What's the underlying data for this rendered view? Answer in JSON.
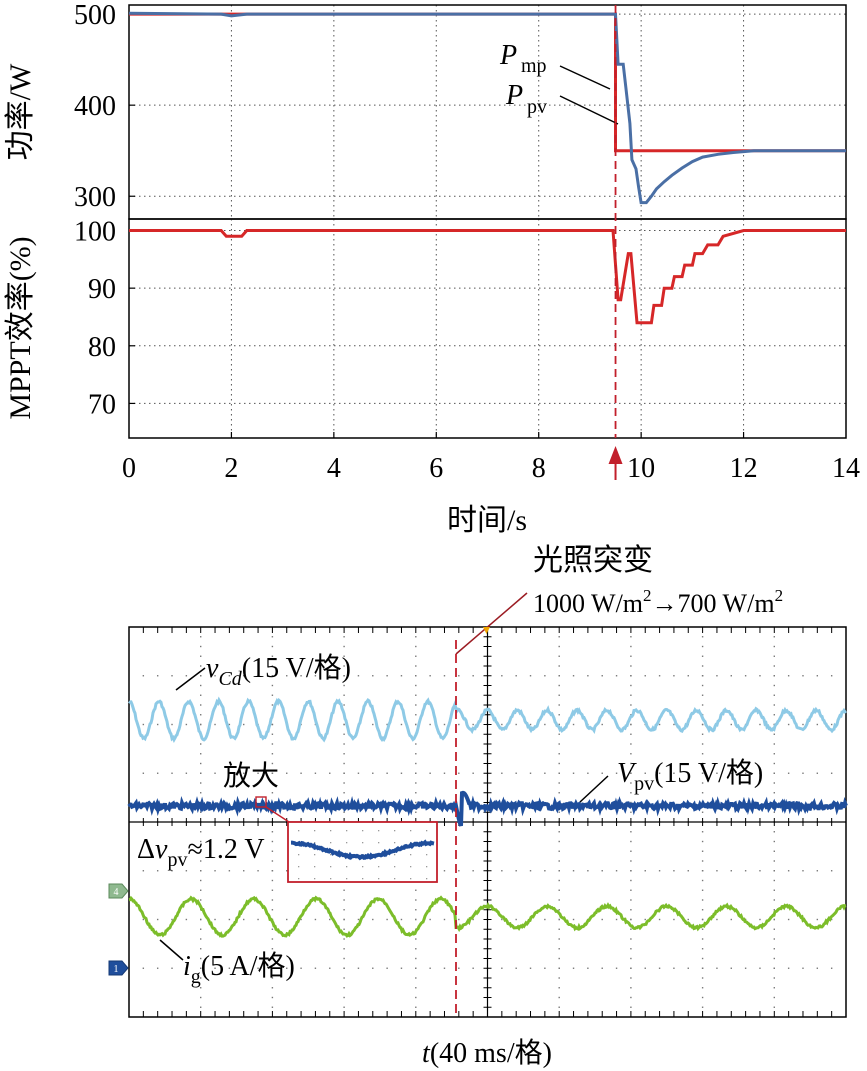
{
  "chart_data": [
    {
      "type": "line",
      "panel": "top",
      "ylabel": "功率/W",
      "xlim": [
        0,
        14
      ],
      "ylim": [
        275,
        510
      ],
      "yticks": [
        "300",
        "400",
        "500"
      ],
      "grid": true,
      "annotations": [
        {
          "base": "P",
          "sub": "mp"
        },
        {
          "base": "P",
          "sub": "pv"
        }
      ],
      "series": [
        {
          "name": "P_mp",
          "color": "#d62728",
          "x": [
            0,
            9.5,
            9.5,
            14
          ],
          "y": [
            500,
            500,
            350,
            350
          ]
        },
        {
          "name": "P_pv",
          "color": "#4a6fa5",
          "x": [
            0,
            1.8,
            2.0,
            2.3,
            9.42,
            9.5,
            9.55,
            9.65,
            9.7,
            9.78,
            9.82,
            9.9,
            9.95,
            10.0,
            10.1,
            10.2,
            10.3,
            10.45,
            10.6,
            10.8,
            11.0,
            11.2,
            11.5,
            11.8,
            12.2,
            14
          ],
          "y": [
            501,
            500,
            498,
            500,
            500,
            500,
            445,
            445,
            420,
            380,
            340,
            330,
            310,
            293,
            293,
            300,
            308,
            316,
            323,
            331,
            338,
            343,
            346,
            348,
            350,
            350
          ]
        }
      ]
    },
    {
      "type": "line",
      "panel": "middle",
      "ylabel": "MPPT效率(%)",
      "xlabel": "时间/s",
      "xlim": [
        0,
        14
      ],
      "ylim": [
        64,
        102
      ],
      "xticks": [
        "0",
        "2",
        "4",
        "6",
        "8",
        "10",
        "12",
        "14"
      ],
      "yticks": [
        "70",
        "80",
        "90",
        "100"
      ],
      "grid": true,
      "marker_x": 9.5,
      "series": [
        {
          "name": "MPPT效率",
          "color": "#d62728",
          "x": [
            0,
            1.8,
            1.9,
            2.2,
            2.3,
            9.45,
            9.55,
            9.6,
            9.75,
            9.8,
            9.92,
            9.98,
            10.0,
            10.2,
            10.25,
            10.4,
            10.45,
            10.6,
            10.65,
            10.8,
            10.85,
            11.0,
            11.05,
            11.2,
            11.3,
            11.5,
            11.6,
            12.0,
            14
          ],
          "y": [
            100,
            100,
            99,
            99,
            100,
            100,
            88,
            88,
            96,
            96,
            84,
            84,
            84,
            84,
            87,
            87,
            90,
            90,
            92,
            92,
            94,
            94,
            96,
            96,
            97.5,
            97.5,
            99,
            100,
            100
          ]
        }
      ]
    },
    {
      "type": "line",
      "panel": "oscilloscope",
      "xlabel": {
        "var": "t",
        "rest": "(40 ms/格)"
      },
      "event_label": "光照突变",
      "event_detail": {
        "from": "1000 W/m",
        "sup1": "2",
        "arrow": "→700 W/m",
        "sup2": "2"
      },
      "zoom_label": "放大",
      "annotations": {
        "vcd": {
          "var": "v",
          "sub": "Cd",
          "rest": "(15 V/格)"
        },
        "vpv": {
          "var": "V",
          "sub": "pv",
          "rest": "(15 V/格)"
        },
        "dv": {
          "pre": "Δ",
          "var": "v",
          "sub": "pv",
          "rest": "≈1.2 V"
        },
        "ig": {
          "var": "i",
          "sub": "g",
          "rest": "(5 A/格)"
        }
      },
      "channel_markers": [
        "4",
        "1"
      ],
      "series": [
        {
          "name": "vCd",
          "color": "#8ecae6",
          "before": {
            "cycles": 24,
            "amp_div": 0.38
          },
          "after": {
            "cycles": 24,
            "amp_div": 0.2
          }
        },
        {
          "name": "Vpv",
          "color": "#1f4e9c",
          "ripple_div": 0.03
        },
        {
          "name": "ig",
          "color": "#7cbd2a",
          "before": {
            "cycles": 11.5,
            "amp_div": 0.37
          },
          "after": {
            "cycles": 12,
            "amp_div": 0.22
          }
        }
      ]
    }
  ]
}
